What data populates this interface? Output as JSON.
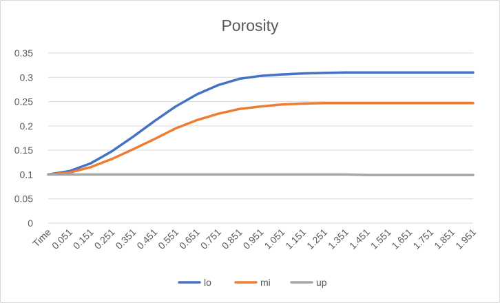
{
  "chart_data": {
    "type": "line",
    "title": "Porosity",
    "xlabel": "",
    "ylabel": "",
    "categories": [
      "Time",
      "0.051",
      "0.151",
      "0.251",
      "0.351",
      "0.451",
      "0.551",
      "0.651",
      "0.751",
      "0.851",
      "0.951",
      "1.051",
      "1.151",
      "1.251",
      "1.351",
      "1.451",
      "1.551",
      "1.651",
      "1.751",
      "1.851",
      "1.951"
    ],
    "ylim": [
      0,
      0.35
    ],
    "yticks": [
      "0",
      "0.05",
      "0.1",
      "0.15",
      "0.2",
      "0.25",
      "0.3",
      "0.35"
    ],
    "grid": true,
    "legend_position": "bottom",
    "series": [
      {
        "name": "lo",
        "color": "#4472C4",
        "values": [
          0.1,
          0.107,
          0.123,
          0.148,
          0.178,
          0.21,
          0.24,
          0.265,
          0.284,
          0.297,
          0.303,
          0.306,
          0.308,
          0.309,
          0.31,
          0.31,
          0.31,
          0.31,
          0.31,
          0.31,
          0.31
        ]
      },
      {
        "name": "mi",
        "color": "#ED7D31",
        "values": [
          0.1,
          0.104,
          0.115,
          0.132,
          0.152,
          0.173,
          0.195,
          0.212,
          0.225,
          0.235,
          0.24,
          0.244,
          0.246,
          0.247,
          0.247,
          0.247,
          0.247,
          0.247,
          0.247,
          0.247,
          0.247
        ]
      },
      {
        "name": "up",
        "color": "#A5A5A5",
        "values": [
          0.1,
          0.1,
          0.1,
          0.1,
          0.1,
          0.1,
          0.1,
          0.1,
          0.1,
          0.1,
          0.1,
          0.1,
          0.1,
          0.1,
          0.1,
          0.099,
          0.099,
          0.099,
          0.099,
          0.099,
          0.099
        ]
      }
    ]
  }
}
